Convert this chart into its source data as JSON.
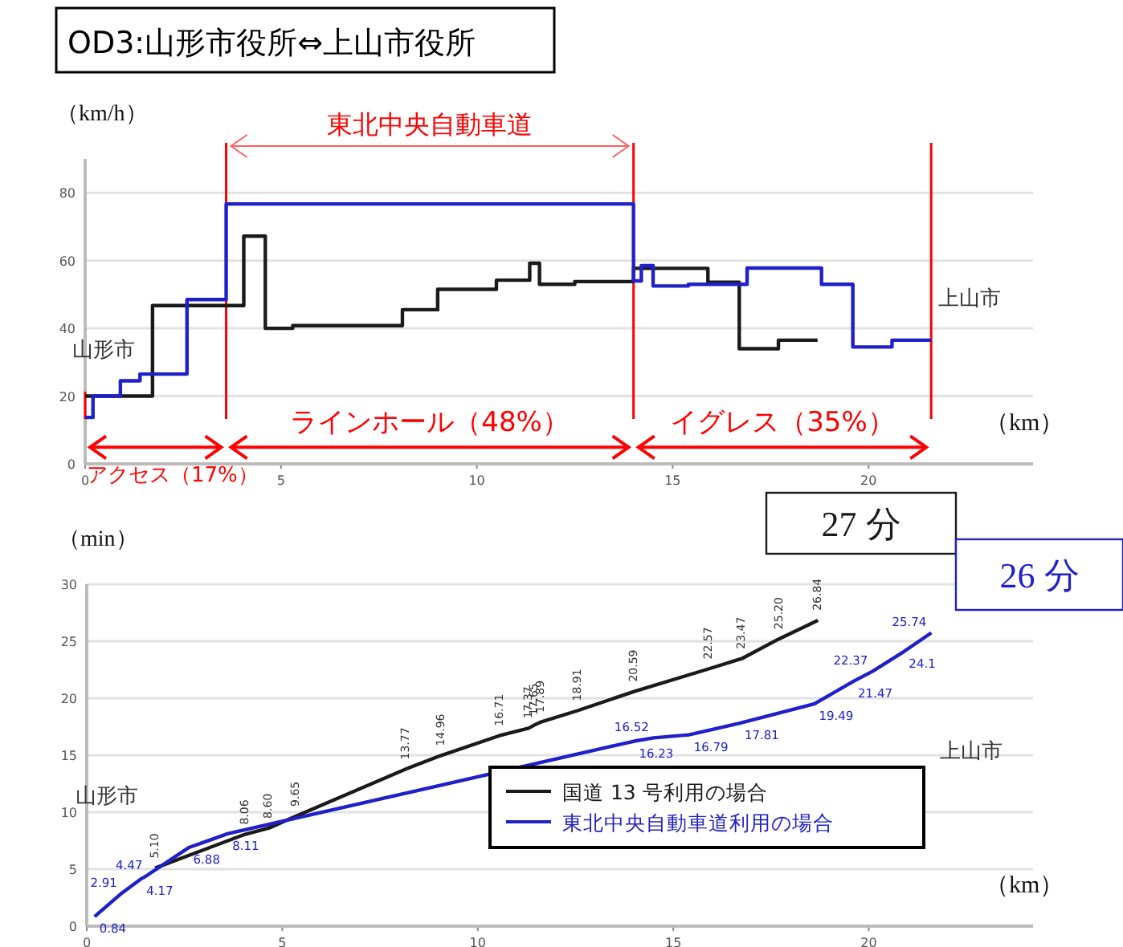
{
  "chart_data": [
    {
      "type": "step",
      "title": "OD3:山形市役所⇔上山市役所",
      "ylabel": "（km/h）",
      "xlabel": "（km）",
      "xlim": [
        0,
        24.2
      ],
      "ylim": [
        0,
        90
      ],
      "xticks": [
        0,
        5,
        10,
        15,
        20
      ],
      "yticks": [
        0,
        20,
        40,
        60,
        80
      ],
      "grid": "y",
      "series": [
        {
          "color": "#1a1a1a",
          "x": [
            0,
            1.72,
            4.05,
            4.6,
            5.3,
            8.1,
            9.0,
            10.5,
            11.35,
            11.6,
            12.5,
            14.0,
            15.9,
            16.7,
            17.7,
            18.7
          ],
          "values": [
            20,
            46.7,
            67.2,
            40,
            40.8,
            45.5,
            51.5,
            54.2,
            59.2,
            53,
            53.8,
            57.7,
            53.6,
            34,
            36.5,
            36.5
          ]
        },
        {
          "color": "#2020c8",
          "x": [
            0,
            0.2,
            0.9,
            1.4,
            2.6,
            3.6,
            14.0,
            14.2,
            14.5,
            15.4,
            16.9,
            18.8,
            19.6,
            20.6,
            21.6
          ],
          "values": [
            13.7,
            20,
            24.5,
            26.5,
            48.5,
            76.7,
            54,
            58.5,
            52.5,
            53,
            57.8,
            53,
            34.5,
            36.5,
            36.5
          ]
        }
      ],
      "ref_lines": [
        {
          "axis": "x",
          "value": 0,
          "color": "#ff0000"
        },
        {
          "axis": "x",
          "value": 3.6,
          "color": "#ff0000"
        },
        {
          "axis": "x",
          "value": 14.0,
          "color": "#ff0000"
        },
        {
          "axis": "x",
          "value": 21.6,
          "color": "#ff0000"
        }
      ],
      "annotations": [
        "山形市",
        "上山市",
        "アクセス（17%）",
        "ラインホール（48%）",
        "イグレス（35%）",
        "東北中央自動車道"
      ]
    },
    {
      "type": "line",
      "ylabel": "（min）",
      "xlabel": "（km）",
      "xlim": [
        0,
        24.2
      ],
      "ylim": [
        0,
        30
      ],
      "xticks": [
        0,
        5,
        10,
        15,
        20
      ],
      "yticks": [
        0,
        5,
        10,
        15,
        20,
        25,
        30
      ],
      "grid": "y",
      "legend": "bottom right",
      "data_labels": true,
      "series": [
        {
          "name": "国道 13 号利用の場合",
          "color": "#1a1a1a",
          "x": [
            1.75,
            4.05,
            4.65,
            5.35,
            8.15,
            9.05,
            10.55,
            11.3,
            11.45,
            11.6,
            12.55,
            14.0,
            15.9,
            16.75,
            17.7,
            18.7
          ],
          "values": [
            5.1,
            8.06,
            8.6,
            9.65,
            13.77,
            14.96,
            16.71,
            17.37,
            17.65,
            17.89,
            18.91,
            20.59,
            22.57,
            23.47,
            25.2,
            26.84
          ],
          "value_labels": [
            "5.10",
            "8.06",
            "8.60",
            "9.65",
            "13.77",
            "14.96",
            "16.71",
            "17.37",
            "17.65",
            "17.89",
            "18.91",
            "20.59",
            "22.57",
            "23.47",
            "25.20",
            "26.84"
          ]
        },
        {
          "name": "東北中央自動車道利用の場合",
          "color": "#2020c8",
          "x": [
            0.2,
            0.9,
            1.4,
            1.55,
            2.6,
            3.6,
            14.0,
            14.5,
            15.4,
            16.7,
            18.6,
            19.6,
            20.1,
            20.9,
            21.6
          ],
          "values": [
            0.84,
            2.91,
            4.17,
            4.47,
            6.88,
            8.11,
            16.23,
            16.52,
            16.79,
            17.81,
            19.49,
            21.47,
            22.37,
            24.1,
            25.74
          ]
        }
      ],
      "annotations": [
        "山形市",
        "上山市",
        "27 分",
        "26 分"
      ]
    }
  ]
}
